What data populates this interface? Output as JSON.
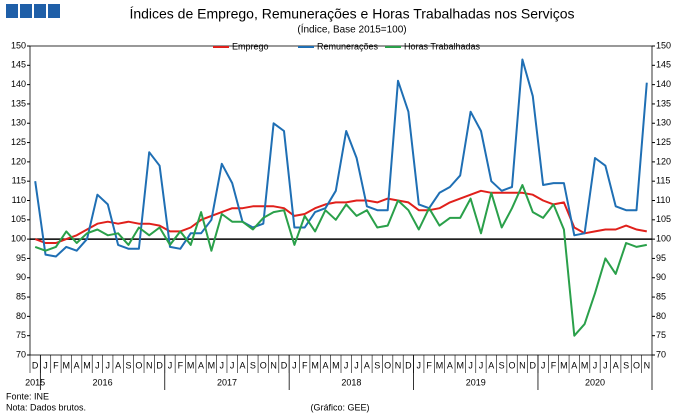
{
  "chart_data": {
    "type": "line",
    "title": "Índices de Emprego, Remunerações e Horas Trabalhadas nos Serviços",
    "subtitle": "(Índice, Base 2015=100)",
    "source": "Fonte: INE",
    "note": "Nota: Dados brutos.",
    "credit": "(Gráfico: GEE)",
    "categories": [
      "D",
      "J",
      "F",
      "M",
      "A",
      "M",
      "J",
      "J",
      "A",
      "S",
      "O",
      "N",
      "D",
      "J",
      "F",
      "M",
      "A",
      "M",
      "J",
      "J",
      "A",
      "S",
      "O",
      "N",
      "D",
      "J",
      "F",
      "M",
      "A",
      "M",
      "J",
      "J",
      "A",
      "S",
      "O",
      "N",
      "D",
      "J",
      "F",
      "M",
      "A",
      "M",
      "J",
      "J",
      "A",
      "S",
      "O",
      "N",
      "D",
      "J",
      "F",
      "M",
      "A",
      "M",
      "J",
      "J",
      "A",
      "S",
      "O",
      "N"
    ],
    "years": [
      "2015",
      "2016",
      "2017",
      "2018",
      "2019",
      "2020"
    ],
    "ylim": [
      70,
      150
    ],
    "yticks": [
      70,
      75,
      80,
      85,
      90,
      95,
      100,
      105,
      110,
      115,
      120,
      125,
      130,
      135,
      140,
      145,
      150
    ],
    "reference_line": 100,
    "legend": "top",
    "series": [
      {
        "name": "Emprego",
        "color": "#e0201b",
        "values": [
          100,
          99,
          99,
          100,
          101,
          102.5,
          104,
          104.5,
          104,
          104.5,
          104,
          104,
          103.5,
          102,
          102,
          103,
          105,
          106,
          107,
          108,
          108,
          108.5,
          108.5,
          108.5,
          108,
          106,
          106.5,
          108,
          109,
          109.5,
          109.5,
          110,
          110,
          109.5,
          110.5,
          110,
          109.5,
          107.5,
          107.5,
          108,
          109.5,
          110.5,
          111.5,
          112.5,
          112,
          112,
          112,
          112,
          111.5,
          110,
          109,
          109.5,
          103,
          101.5,
          102,
          102.5,
          102.5,
          103.5,
          102.5,
          102
        ]
      },
      {
        "name": "Remunerações",
        "color": "#1f6fb4",
        "values": [
          115,
          96,
          95.5,
          98,
          97,
          100,
          111.5,
          109,
          98.5,
          97.5,
          97.5,
          122.5,
          119,
          98,
          97.5,
          101.5,
          101.5,
          105,
          119.5,
          114.5,
          104.5,
          103,
          104,
          130,
          128,
          103,
          103,
          107,
          108,
          112.5,
          128,
          121,
          108.5,
          107.5,
          107.5,
          141,
          133,
          109,
          108,
          112,
          113.5,
          116.5,
          133,
          128,
          115,
          112.5,
          113.5,
          146.5,
          137,
          114,
          114.5,
          114.5,
          101,
          101.5,
          121,
          119,
          108.5,
          107.5,
          107.5,
          140.5
        ]
      },
      {
        "name": "Horas Trabalhadas",
        "color": "#2aa04a",
        "values": [
          98,
          97,
          98,
          102,
          99,
          101.5,
          102.5,
          101,
          101.5,
          98.5,
          103,
          101,
          103,
          98.5,
          102,
          98.5,
          107,
          97,
          106.5,
          104.5,
          104.5,
          102.5,
          105.5,
          107,
          107.5,
          98.5,
          106,
          102,
          107.5,
          105,
          109,
          106,
          107.5,
          103,
          103.5,
          110,
          107.5,
          102.5,
          108,
          103.5,
          105.5,
          105.5,
          110.5,
          101.5,
          112,
          103,
          108,
          114,
          107,
          105.5,
          109,
          102.5,
          75,
          78,
          86,
          95,
          91,
          99,
          98,
          98.5
        ]
      }
    ]
  }
}
